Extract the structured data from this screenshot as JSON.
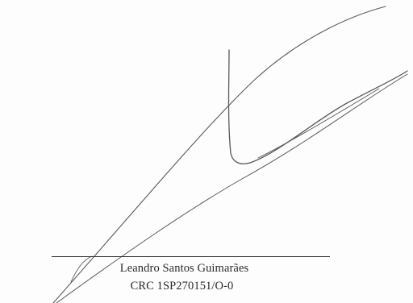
{
  "signature": {
    "signer_name": "Leandro Santos Guimarães",
    "registration": "CRC 1SP270151/O-0",
    "ink_color": "#5a5a5a",
    "line_color": "#2b2b2b"
  }
}
